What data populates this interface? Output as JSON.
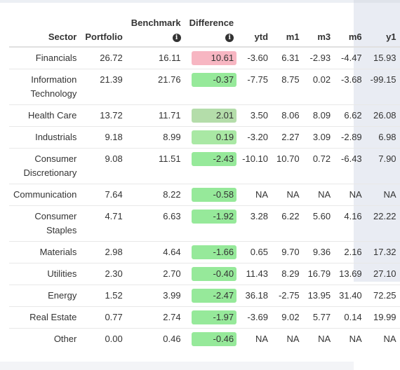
{
  "columns": {
    "sector": "Sector",
    "portfolio": "Portfolio",
    "benchmark": "Benchmark",
    "difference": "Difference",
    "ytd": "ytd",
    "m1": "m1",
    "m3": "m3",
    "m6": "m6",
    "y1": "y1",
    "info_icon": "i"
  },
  "colors": {
    "positive_diff": "#f7b6c2",
    "negative_diff": "#96e99a",
    "mild_positive_diff": "#b4ddaa"
  },
  "rows": [
    {
      "sector": "Financials",
      "portfolio": "26.72",
      "benchmark": "16.11",
      "difference": "10.61",
      "diff_style": "pos",
      "ytd": "-3.60",
      "m1": "6.31",
      "m3": "-2.93",
      "m6": "-4.47",
      "y1": "15.93"
    },
    {
      "sector": "Information Technology",
      "portfolio": "21.39",
      "benchmark": "21.76",
      "difference": "-0.37",
      "diff_style": "neg",
      "ytd": "-7.75",
      "m1": "8.75",
      "m3": "0.02",
      "m6": "-3.68",
      "y1": "-99.15"
    },
    {
      "sector": "Health Care",
      "portfolio": "13.72",
      "benchmark": "11.71",
      "difference": "2.01",
      "diff_style": "mild",
      "ytd": "3.50",
      "m1": "8.06",
      "m3": "8.09",
      "m6": "6.62",
      "y1": "26.08"
    },
    {
      "sector": "Industrials",
      "portfolio": "9.18",
      "benchmark": "8.99",
      "difference": "0.19",
      "diff_style": "vmild",
      "ytd": "-3.20",
      "m1": "2.27",
      "m3": "3.09",
      "m6": "-2.89",
      "y1": "6.98"
    },
    {
      "sector": "Consumer Discretionary",
      "portfolio": "9.08",
      "benchmark": "11.51",
      "difference": "-2.43",
      "diff_style": "neg",
      "ytd": "-10.10",
      "m1": "10.70",
      "m3": "0.72",
      "m6": "-6.43",
      "y1": "7.90"
    },
    {
      "sector": "Communication",
      "portfolio": "7.64",
      "benchmark": "8.22",
      "difference": "-0.58",
      "diff_style": "neg",
      "ytd": "NA",
      "m1": "NA",
      "m3": "NA",
      "m6": "NA",
      "y1": "NA"
    },
    {
      "sector": "Consumer Staples",
      "portfolio": "4.71",
      "benchmark": "6.63",
      "difference": "-1.92",
      "diff_style": "neg",
      "ytd": "3.28",
      "m1": "6.22",
      "m3": "5.60",
      "m6": "4.16",
      "y1": "22.22"
    },
    {
      "sector": "Materials",
      "portfolio": "2.98",
      "benchmark": "4.64",
      "difference": "-1.66",
      "diff_style": "neg",
      "ytd": "0.65",
      "m1": "9.70",
      "m3": "9.36",
      "m6": "2.16",
      "y1": "17.32"
    },
    {
      "sector": "Utilities",
      "portfolio": "2.30",
      "benchmark": "2.70",
      "difference": "-0.40",
      "diff_style": "neg",
      "ytd": "11.43",
      "m1": "8.29",
      "m3": "16.79",
      "m6": "13.69",
      "y1": "27.10"
    },
    {
      "sector": "Energy",
      "portfolio": "1.52",
      "benchmark": "3.99",
      "difference": "-2.47",
      "diff_style": "neg",
      "ytd": "36.18",
      "m1": "-2.75",
      "m3": "13.95",
      "m6": "31.40",
      "y1": "72.25"
    },
    {
      "sector": "Real Estate",
      "portfolio": "0.77",
      "benchmark": "2.74",
      "difference": "-1.97",
      "diff_style": "neg",
      "ytd": "-3.69",
      "m1": "9.02",
      "m3": "5.77",
      "m6": "0.14",
      "y1": "19.99"
    },
    {
      "sector": "Other",
      "portfolio": "0.00",
      "benchmark": "0.46",
      "difference": "-0.46",
      "diff_style": "neg",
      "ytd": "NA",
      "m1": "NA",
      "m3": "NA",
      "m6": "NA",
      "y1": "NA"
    }
  ]
}
